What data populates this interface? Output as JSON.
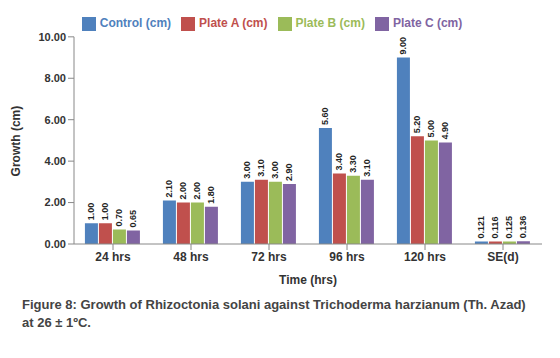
{
  "chart_data": {
    "type": "bar",
    "title": "Figure 8: Growth of Rhizoctonia solani against Trichoderma harzianum (Th. Azad) at 26 ± 1ºC.",
    "x_label": "Time (hrs)",
    "y_label": "Growth (cm)",
    "categories": [
      "24 hrs",
      "48 hrs",
      "72 hrs",
      "96 hrs",
      "120 hrs",
      "SE(d)"
    ],
    "series": [
      {
        "name": "Control (cm)",
        "color": "#4f81bd",
        "values": [
          1.0,
          2.1,
          3.0,
          5.6,
          9.0,
          0.121
        ],
        "value_labels": [
          "1.00",
          "2.10",
          "3.00",
          "5.60",
          "9.00",
          "0.121"
        ]
      },
      {
        "name": "Plate A (cm)",
        "color": "#c0504d",
        "values": [
          1.0,
          2.0,
          3.1,
          3.4,
          5.2,
          0.116
        ],
        "value_labels": [
          "1.00",
          "2.00",
          "3.10",
          "3.40",
          "5.20",
          "0.116"
        ]
      },
      {
        "name": "Plate B (cm)",
        "color": "#9bbb59",
        "values": [
          0.7,
          2.0,
          3.0,
          3.3,
          5.0,
          0.125
        ],
        "value_labels": [
          "0.70",
          "2.00",
          "3.00",
          "3.30",
          "5.00",
          "0.125"
        ]
      },
      {
        "name": "Plate C (cm)",
        "color": "#8064a2",
        "values": [
          0.65,
          1.8,
          2.9,
          3.1,
          4.9,
          0.136
        ],
        "value_labels": [
          "0.65",
          "1.80",
          "2.90",
          "3.10",
          "4.90",
          "0.136"
        ]
      }
    ],
    "ylim": [
      0,
      10
    ],
    "yticks": [
      {
        "value": 0,
        "label": "0.00"
      },
      {
        "value": 2,
        "label": "2.00"
      },
      {
        "value": 4,
        "label": "4.00"
      },
      {
        "value": 6,
        "label": "6.00"
      },
      {
        "value": 8,
        "label": "8.00"
      },
      {
        "value": 10,
        "label": "10.00"
      }
    ],
    "grid": false,
    "legend": "top",
    "data_labels": true
  }
}
